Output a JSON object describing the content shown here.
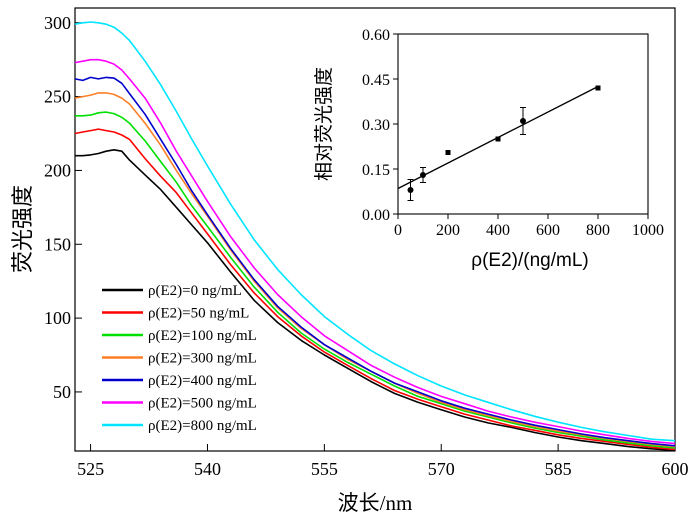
{
  "chart_data": [
    {
      "type": "line",
      "title": "",
      "xlabel": "波长/nm",
      "ylabel": "荧光强度",
      "xlim": [
        523,
        600
      ],
      "ylim": [
        10,
        310
      ],
      "xticks": [
        525,
        540,
        555,
        570,
        585,
        600
      ],
      "yticks": [
        50,
        100,
        150,
        200,
        250,
        300
      ],
      "grid": false,
      "legend_position": "bottom-left",
      "x": [
        523,
        524,
        525,
        526,
        527,
        528,
        529,
        530,
        532,
        534,
        536,
        538,
        540,
        543,
        546,
        549,
        552,
        555,
        558,
        561,
        564,
        567,
        570,
        573,
        576,
        579,
        582,
        585,
        588,
        591,
        594,
        597,
        600
      ],
      "series": [
        {
          "name": "ρ(E2)=0 ng/mL",
          "color": "#000000",
          "values": [
            210,
            210,
            210.5,
            211.5,
            213,
            214,
            213,
            207,
            197,
            187,
            175,
            163,
            151,
            131,
            112,
            97,
            85,
            75,
            66,
            57,
            49,
            43,
            38,
            33,
            29,
            26,
            22.5,
            19.5,
            17,
            15,
            13,
            11.5,
            10.5
          ]
        },
        {
          "name": "ρ(E2)=50 ng/mL",
          "color": "#ff0000",
          "values": [
            225,
            226,
            227,
            228,
            227,
            226,
            224,
            221,
            208,
            196,
            185,
            171,
            157,
            136,
            117,
            101,
            88,
            77,
            68,
            59,
            51,
            45,
            40,
            35,
            31,
            27,
            24,
            21,
            18.5,
            16.5,
            14.5,
            12.5,
            11
          ]
        },
        {
          "name": "ρ(E2)=100 ng/mL",
          "color": "#00e000",
          "values": [
            237,
            237,
            237.5,
            239,
            239.5,
            238.5,
            236,
            232,
            220,
            206,
            192,
            176,
            162,
            141,
            121,
            104,
            90,
            79,
            70,
            62,
            54,
            47,
            42,
            37,
            33,
            29,
            25.5,
            22.5,
            20,
            17.5,
            15.5,
            13.5,
            12
          ]
        },
        {
          "name": "ρ(E2)=300 ng/mL",
          "color": "#ff7f27",
          "values": [
            249,
            250,
            251,
            252.5,
            252.5,
            251.5,
            249,
            245,
            232,
            217,
            200,
            184,
            169,
            146,
            125,
            107,
            93,
            82,
            72,
            64,
            56,
            49,
            43,
            38,
            34,
            30,
            26.5,
            23.5,
            21,
            18.5,
            16.5,
            14.5,
            13
          ]
        },
        {
          "name": "ρ(E2)=400 ng/mL",
          "color": "#0000cc",
          "values": [
            262,
            261,
            263,
            262,
            263,
            262.5,
            259,
            252,
            238,
            221,
            204,
            186,
            170,
            147,
            126,
            108,
            94,
            82,
            73,
            64,
            56,
            50,
            44,
            39,
            35,
            31,
            27.5,
            24.5,
            21.5,
            19,
            17,
            15,
            13.5
          ]
        },
        {
          "name": "ρ(E2)=500 ng/mL",
          "color": "#ff00ff",
          "values": [
            273,
            274,
            275,
            275,
            274,
            272,
            268,
            262,
            249,
            232,
            213,
            196,
            179,
            155,
            134,
            116,
            101,
            88,
            78,
            68,
            60,
            53,
            47,
            42,
            37,
            33,
            29.5,
            26.5,
            23.5,
            21,
            18.5,
            16.5,
            15
          ]
        },
        {
          "name": "ρ(E2)=800 ng/mL",
          "color": "#00e5ff",
          "values": [
            299,
            300,
            300.5,
            300,
            299,
            297,
            293,
            288,
            274,
            258,
            240,
            221,
            203,
            177,
            153,
            133,
            116,
            101,
            89,
            78,
            69,
            61,
            54,
            48,
            43,
            38,
            33.5,
            29.5,
            26,
            23,
            20.5,
            18,
            17
          ]
        }
      ]
    },
    {
      "type": "scatter",
      "title": "",
      "xlabel": "ρ(E2)/(ng/mL)",
      "ylabel": "相对荧光强度",
      "xlim": [
        0,
        1000
      ],
      "ylim": [
        0,
        0.6
      ],
      "xticks": [
        0,
        200,
        400,
        600,
        800,
        1000
      ],
      "yticks": [
        "0.00",
        "0.15",
        "0.30",
        "0.45",
        "0.60"
      ],
      "grid": false,
      "legend_position": "none",
      "points": [
        {
          "x": 50,
          "y": 0.08,
          "err": 0.035,
          "marker": "circle"
        },
        {
          "x": 100,
          "y": 0.13,
          "err": 0.025,
          "marker": "circle"
        },
        {
          "x": 200,
          "y": 0.205,
          "err": 0,
          "marker": "square"
        },
        {
          "x": 400,
          "y": 0.25,
          "err": 0,
          "marker": "square"
        },
        {
          "x": 500,
          "y": 0.31,
          "err": 0.045,
          "marker": "circle"
        },
        {
          "x": 800,
          "y": 0.42,
          "err": 0,
          "marker": "square"
        }
      ],
      "fit_line": {
        "x": [
          0,
          800
        ],
        "y": [
          0.085,
          0.425
        ]
      }
    }
  ]
}
